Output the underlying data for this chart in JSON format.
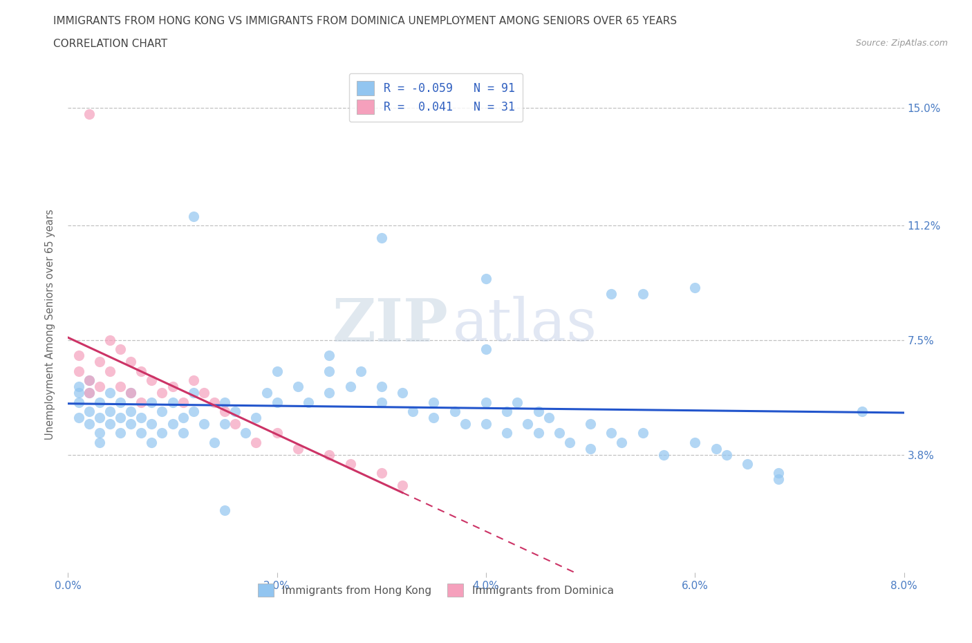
{
  "title_line1": "IMMIGRANTS FROM HONG KONG VS IMMIGRANTS FROM DOMINICA UNEMPLOYMENT AMONG SENIORS OVER 65 YEARS",
  "title_line2": "CORRELATION CHART",
  "source_text": "Source: ZipAtlas.com",
  "ylabel": "Unemployment Among Seniors over 65 years",
  "xlim": [
    0.0,
    0.08
  ],
  "ylim": [
    0.0,
    0.16
  ],
  "yticks": [
    0.038,
    0.075,
    0.112,
    0.15
  ],
  "ytick_labels": [
    "3.8%",
    "7.5%",
    "11.2%",
    "15.0%"
  ],
  "xticks": [
    0.0,
    0.02,
    0.04,
    0.06,
    0.08
  ],
  "xtick_labels": [
    "0.0%",
    "2.0%",
    "4.0%",
    "6.0%",
    "8.0%"
  ],
  "r_hk": -0.059,
  "n_hk": 91,
  "r_dom": 0.041,
  "n_dom": 31,
  "color_hk": "#92C5F0",
  "color_dom": "#F5A0BC",
  "trendline_color_hk": "#2255CC",
  "trendline_color_dom": "#CC3366",
  "watermark_zip": "ZIP",
  "watermark_atlas": "atlas",
  "background_color": "#FFFFFF",
  "title_color": "#444444",
  "axis_label_color": "#666666",
  "tick_label_color": "#4A7CC4",
  "grid_color": "#BBBBBB",
  "legend_text_color": "#3060C0",
  "bottom_legend_color": "#555555",
  "hk_x": [
    0.001,
    0.001,
    0.001,
    0.001,
    0.002,
    0.002,
    0.002,
    0.002,
    0.003,
    0.003,
    0.003,
    0.003,
    0.004,
    0.004,
    0.004,
    0.005,
    0.005,
    0.005,
    0.006,
    0.006,
    0.006,
    0.007,
    0.007,
    0.008,
    0.008,
    0.008,
    0.009,
    0.009,
    0.01,
    0.01,
    0.011,
    0.011,
    0.012,
    0.012,
    0.013,
    0.014,
    0.015,
    0.015,
    0.016,
    0.017,
    0.018,
    0.019,
    0.02,
    0.02,
    0.022,
    0.023,
    0.025,
    0.025,
    0.027,
    0.028,
    0.03,
    0.03,
    0.032,
    0.033,
    0.035,
    0.035,
    0.037,
    0.038,
    0.04,
    0.04,
    0.042,
    0.042,
    0.043,
    0.044,
    0.045,
    0.045,
    0.046,
    0.047,
    0.048,
    0.05,
    0.05,
    0.052,
    0.053,
    0.055,
    0.057,
    0.06,
    0.062,
    0.063,
    0.065,
    0.068,
    0.012,
    0.03,
    0.04,
    0.052,
    0.055,
    0.06,
    0.04,
    0.025,
    0.015,
    0.068,
    0.076
  ],
  "hk_y": [
    0.06,
    0.058,
    0.055,
    0.05,
    0.062,
    0.058,
    0.052,
    0.048,
    0.055,
    0.05,
    0.045,
    0.042,
    0.052,
    0.048,
    0.058,
    0.055,
    0.05,
    0.045,
    0.052,
    0.048,
    0.058,
    0.05,
    0.045,
    0.055,
    0.048,
    0.042,
    0.052,
    0.045,
    0.055,
    0.048,
    0.05,
    0.045,
    0.052,
    0.058,
    0.048,
    0.042,
    0.055,
    0.048,
    0.052,
    0.045,
    0.05,
    0.058,
    0.065,
    0.055,
    0.06,
    0.055,
    0.065,
    0.058,
    0.06,
    0.065,
    0.055,
    0.06,
    0.058,
    0.052,
    0.055,
    0.05,
    0.052,
    0.048,
    0.055,
    0.048,
    0.052,
    0.045,
    0.055,
    0.048,
    0.052,
    0.045,
    0.05,
    0.045,
    0.042,
    0.048,
    0.04,
    0.045,
    0.042,
    0.045,
    0.038,
    0.042,
    0.04,
    0.038,
    0.035,
    0.032,
    0.115,
    0.108,
    0.095,
    0.09,
    0.09,
    0.092,
    0.072,
    0.07,
    0.02,
    0.03,
    0.052
  ],
  "dom_x": [
    0.001,
    0.001,
    0.002,
    0.002,
    0.003,
    0.003,
    0.004,
    0.004,
    0.005,
    0.005,
    0.006,
    0.006,
    0.007,
    0.007,
    0.008,
    0.009,
    0.01,
    0.011,
    0.012,
    0.013,
    0.014,
    0.015,
    0.016,
    0.018,
    0.02,
    0.022,
    0.025,
    0.027,
    0.03,
    0.032,
    0.002
  ],
  "dom_y": [
    0.07,
    0.065,
    0.062,
    0.058,
    0.068,
    0.06,
    0.075,
    0.065,
    0.072,
    0.06,
    0.068,
    0.058,
    0.065,
    0.055,
    0.062,
    0.058,
    0.06,
    0.055,
    0.062,
    0.058,
    0.055,
    0.052,
    0.048,
    0.042,
    0.045,
    0.04,
    0.038,
    0.035,
    0.032,
    0.028,
    0.148
  ]
}
